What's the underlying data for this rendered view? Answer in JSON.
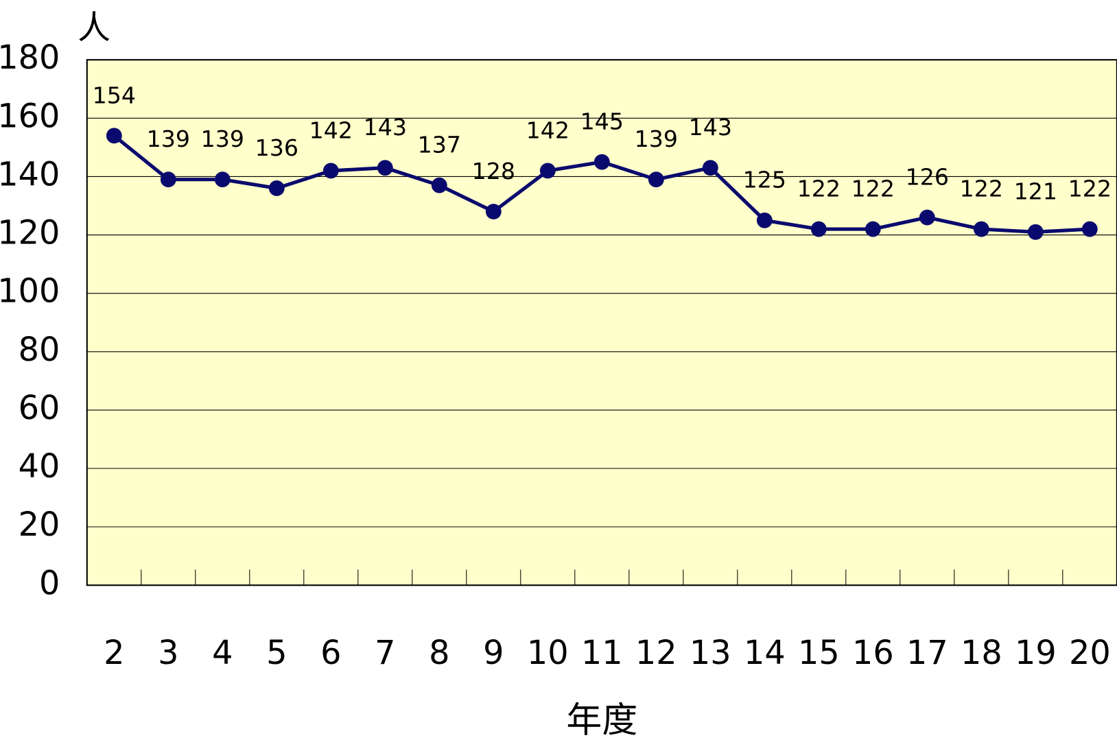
{
  "chart_data": {
    "type": "line",
    "y_label": "人",
    "x_label": "年度",
    "categories": [
      "2",
      "3",
      "4",
      "5",
      "6",
      "7",
      "8",
      "9",
      "10",
      "11",
      "12",
      "13",
      "14",
      "15",
      "16",
      "17",
      "18",
      "19",
      "20"
    ],
    "values": [
      154,
      139,
      139,
      136,
      142,
      143,
      137,
      128,
      142,
      145,
      139,
      143,
      125,
      122,
      122,
      126,
      122,
      121,
      122
    ],
    "color": "#0a0a6e",
    "ylim": [
      0,
      180
    ],
    "yticks": [
      0,
      20,
      40,
      60,
      80,
      100,
      120,
      140,
      160,
      180
    ],
    "grid": true
  }
}
